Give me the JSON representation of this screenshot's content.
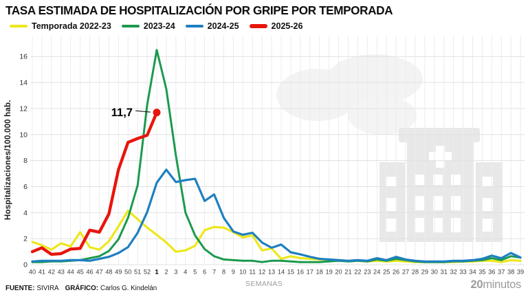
{
  "footer": {
    "source_label": "FUENTE:",
    "source": "SIVIRA",
    "credit_label": "GRÁFICO:",
    "credit": "Carlos G. Kindelán",
    "publisher_bold": "20",
    "publisher_rest": "minutos"
  },
  "chart_data": {
    "type": "line",
    "title": "TASA ESTIMADA DE HOSPITALIZACIÓN POR GRIPE POR TEMPORADA",
    "ylabel": "Hospitalizaciones/100.000 hab.",
    "xlabel": "SEMANAS",
    "ylim": [
      0,
      17
    ],
    "yticks": [
      0,
      2,
      4,
      6,
      8,
      10,
      12,
      14,
      16
    ],
    "grid": true,
    "legend_position": "top",
    "x_labels": [
      "40",
      "41",
      "42",
      "43",
      "44",
      "45",
      "46",
      "47",
      "48",
      "49",
      "50",
      "51",
      "52",
      "1",
      "2",
      "3",
      "4",
      "5",
      "6",
      "7",
      "8",
      "9",
      "10",
      "11",
      "12",
      "13",
      "14",
      "15",
      "16",
      "17",
      "18",
      "19",
      "20",
      "21",
      "22",
      "23",
      "24",
      "25",
      "26",
      "27",
      "28",
      "29",
      "30",
      "31",
      "32",
      "33",
      "34",
      "35",
      "36",
      "37",
      "38",
      "39"
    ],
    "bold_x_label": "1",
    "series": [
      {
        "name": "Temporada 2022-23",
        "color": "#ede71c",
        "width": 3.2,
        "values": [
          1.75,
          1.5,
          1.15,
          1.65,
          1.4,
          2.5,
          1.35,
          1.15,
          1.8,
          2.95,
          4.15,
          3.5,
          2.85,
          2.3,
          1.7,
          1.0,
          1.1,
          1.45,
          2.65,
          2.9,
          2.85,
          2.5,
          2.1,
          2.25,
          1.1,
          1.25,
          0.45,
          0.65,
          0.5,
          0.45,
          0.4,
          0.35,
          0.3,
          0.3,
          0.3,
          0.25,
          0.3,
          0.25,
          0.3,
          0.25,
          0.2,
          0.2,
          0.2,
          0.2,
          0.2,
          0.25,
          0.25,
          0.3,
          0.3,
          0.2,
          0.35,
          0.3
        ]
      },
      {
        "name": "2023-24",
        "color": "#1b9a4d",
        "width": 3.0,
        "values": [
          0.2,
          0.2,
          0.25,
          0.25,
          0.3,
          0.35,
          0.5,
          0.65,
          1.05,
          1.95,
          3.6,
          6.1,
          12.3,
          16.5,
          13.5,
          8.4,
          4.0,
          2.25,
          1.2,
          0.65,
          0.4,
          0.35,
          0.3,
          0.3,
          0.2,
          0.3,
          0.3,
          0.25,
          0.2,
          0.2,
          0.2,
          0.25,
          0.3,
          0.25,
          0.3,
          0.25,
          0.4,
          0.3,
          0.45,
          0.35,
          0.25,
          0.2,
          0.2,
          0.2,
          0.25,
          0.25,
          0.3,
          0.35,
          0.5,
          0.35,
          0.65,
          0.55
        ]
      },
      {
        "name": "2024-25",
        "color": "#1e7fc1",
        "width": 3.2,
        "values": [
          0.25,
          0.3,
          0.3,
          0.3,
          0.35,
          0.35,
          0.3,
          0.45,
          0.6,
          0.9,
          1.35,
          2.45,
          4.05,
          6.3,
          7.3,
          6.35,
          6.5,
          6.6,
          4.9,
          5.4,
          3.6,
          2.55,
          2.3,
          2.45,
          1.7,
          1.3,
          1.55,
          0.95,
          0.8,
          0.6,
          0.45,
          0.4,
          0.35,
          0.3,
          0.35,
          0.3,
          0.5,
          0.35,
          0.6,
          0.4,
          0.3,
          0.25,
          0.25,
          0.25,
          0.3,
          0.3,
          0.35,
          0.45,
          0.7,
          0.5,
          0.9,
          0.55
        ]
      },
      {
        "name": "2025-26",
        "color": "#e8150c",
        "width": 4.4,
        "end_dot": true,
        "values": [
          1.0,
          1.3,
          0.8,
          0.85,
          1.2,
          1.25,
          2.65,
          2.5,
          3.9,
          7.3,
          9.4,
          9.7,
          9.95,
          11.7,
          null,
          null,
          null,
          null,
          null,
          null,
          null,
          null,
          null,
          null,
          null,
          null,
          null,
          null,
          null,
          null,
          null,
          null,
          null,
          null,
          null,
          null,
          null,
          null,
          null,
          null,
          null,
          null,
          null,
          null,
          null,
          null,
          null,
          null,
          null,
          null,
          null,
          null
        ]
      }
    ],
    "annotation": {
      "label": "11,7",
      "series": "2025-26",
      "week": "1",
      "value": 11.7
    }
  }
}
